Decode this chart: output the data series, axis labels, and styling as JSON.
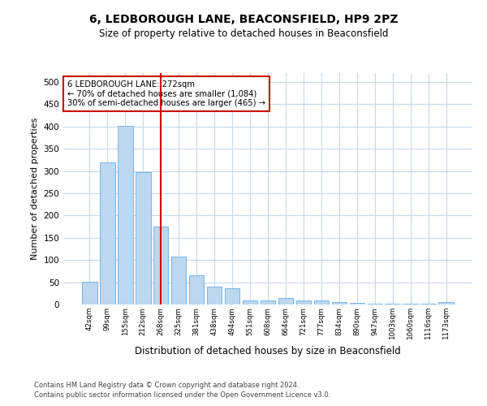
{
  "title": "6, LEDBOROUGH LANE, BEACONSFIELD, HP9 2PZ",
  "subtitle": "Size of property relative to detached houses in Beaconsfield",
  "xlabel": "Distribution of detached houses by size in Beaconsfield",
  "ylabel": "Number of detached properties",
  "categories": [
    "42sqm",
    "99sqm",
    "155sqm",
    "212sqm",
    "268sqm",
    "325sqm",
    "381sqm",
    "438sqm",
    "494sqm",
    "551sqm",
    "608sqm",
    "664sqm",
    "721sqm",
    "777sqm",
    "834sqm",
    "890sqm",
    "947sqm",
    "1003sqm",
    "1060sqm",
    "1116sqm",
    "1173sqm"
  ],
  "values": [
    52,
    320,
    402,
    298,
    175,
    107,
    65,
    40,
    36,
    10,
    10,
    15,
    10,
    9,
    6,
    3,
    1,
    2,
    1,
    1,
    5
  ],
  "bar_color": "#bdd7ee",
  "bar_edge_color": "#6aabe0",
  "vline_x": 4.0,
  "vline_color": "#cc0000",
  "annotation_text": "6 LEDBOROUGH LANE: 272sqm\n← 70% of detached houses are smaller (1,084)\n30% of semi-detached houses are larger (465) →",
  "annotation_box_color": "#ffffff",
  "annotation_box_edge": "#cc0000",
  "ylim": [
    0,
    520
  ],
  "yticks": [
    0,
    50,
    100,
    150,
    200,
    250,
    300,
    350,
    400,
    450,
    500
  ],
  "footer_line1": "Contains HM Land Registry data © Crown copyright and database right 2024.",
  "footer_line2": "Contains public sector information licensed under the Open Government Licence v3.0.",
  "bg_color": "#ffffff",
  "grid_color": "#c8d8ea"
}
